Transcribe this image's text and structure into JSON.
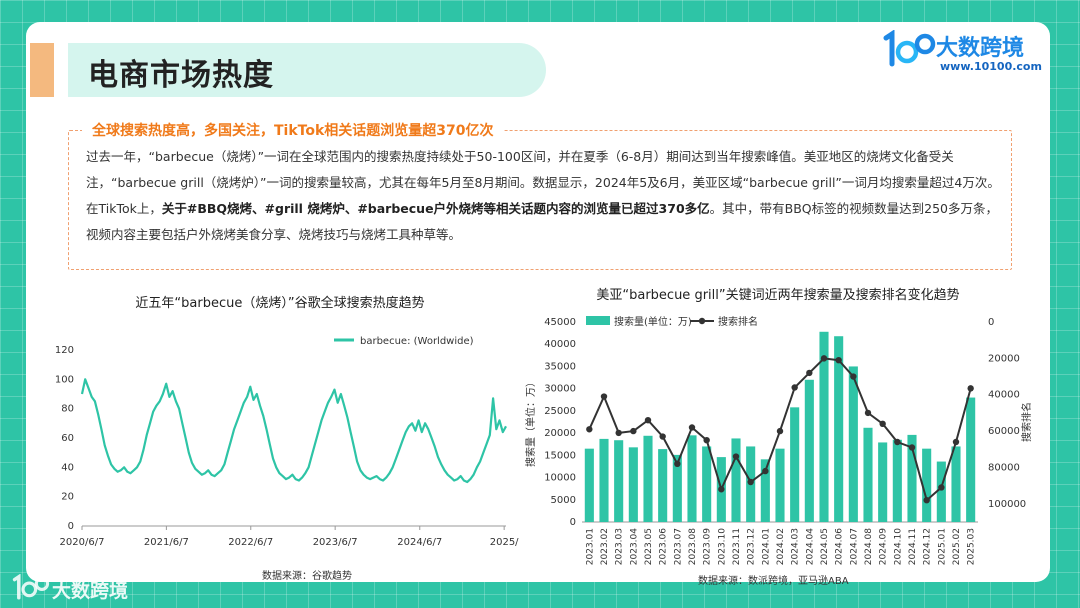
{
  "page": {
    "title": "电商市场热度",
    "logo_text": "大数跨境",
    "logo_url": "www.10100.com",
    "watermark_text": "大数跨境"
  },
  "summary": {
    "heading": "全球搜索热度高，多国关注，TikTok相关话题浏览量超370亿次",
    "p1": "过去一年，“barbecue（烧烤）”一词在全球范围内的搜索热度持续处于50-100区间，并在夏季（6-8月）期间达到当年搜索峰值。美亚地区的烧烤文化备受关注，“barbecue grill（烧烤炉）”一词的搜索量较高，尤其在每年5月至8月期间。数据显示，2024年5及6月，美亚区域“barbecue grill”一词月均搜索量超过4万次。",
    "p2_lead": "在TikTok上，",
    "p2_bold": "关于#BBQ烧烤、#grill 烧烤炉、#barbecue户外烧烤等相关话题内容的浏览量已超过370多亿",
    "p2_tail": "。其中，带有BBQ标签的视频数量达到250多万条，视频内容主要包括户外烧烤美食分享、烧烤技巧与烧烤工具种草等。"
  },
  "chart_data": [
    {
      "type": "line",
      "title": "近五年“barbecue（烧烤）”谷歌全球搜索热度趋势",
      "source": "数据来源：谷歌趋势",
      "legend": "barbecue: (Worldwide)",
      "legend_position": "top-right",
      "color": "#2ec4a6",
      "ylim": [
        0,
        120
      ],
      "yticks": [
        0,
        20,
        40,
        60,
        80,
        100,
        120
      ],
      "xticks": [
        "2020/6/7",
        "2021/6/7",
        "2022/6/7",
        "2023/6/7",
        "2024/6/7",
        "2025/"
      ],
      "x_range": [
        "2020-06-07",
        "2025-06-15"
      ],
      "points": [
        [
          "2020-06-07",
          90
        ],
        [
          "2020-06-21",
          100
        ],
        [
          "2020-07-05",
          94
        ],
        [
          "2020-07-19",
          88
        ],
        [
          "2020-08-02",
          85
        ],
        [
          "2020-08-16",
          76
        ],
        [
          "2020-08-30",
          66
        ],
        [
          "2020-09-13",
          55
        ],
        [
          "2020-09-27",
          48
        ],
        [
          "2020-10-11",
          42
        ],
        [
          "2020-10-25",
          39
        ],
        [
          "2020-11-08",
          37
        ],
        [
          "2020-11-22",
          38
        ],
        [
          "2020-12-06",
          40
        ],
        [
          "2020-12-20",
          37
        ],
        [
          "2021-01-03",
          36
        ],
        [
          "2021-01-17",
          38
        ],
        [
          "2021-01-31",
          40
        ],
        [
          "2021-02-14",
          44
        ],
        [
          "2021-02-28",
          52
        ],
        [
          "2021-03-14",
          62
        ],
        [
          "2021-03-28",
          70
        ],
        [
          "2021-04-11",
          78
        ],
        [
          "2021-04-25",
          82
        ],
        [
          "2021-05-09",
          85
        ],
        [
          "2021-05-23",
          90
        ],
        [
          "2021-06-06",
          97
        ],
        [
          "2021-06-20",
          88
        ],
        [
          "2021-07-04",
          92
        ],
        [
          "2021-07-18",
          85
        ],
        [
          "2021-08-01",
          80
        ],
        [
          "2021-08-15",
          70
        ],
        [
          "2021-08-29",
          60
        ],
        [
          "2021-09-12",
          50
        ],
        [
          "2021-09-26",
          43
        ],
        [
          "2021-10-10",
          39
        ],
        [
          "2021-10-24",
          37
        ],
        [
          "2021-11-07",
          35
        ],
        [
          "2021-11-21",
          36
        ],
        [
          "2021-12-05",
          38
        ],
        [
          "2021-12-19",
          35
        ],
        [
          "2022-01-02",
          34
        ],
        [
          "2022-01-16",
          36
        ],
        [
          "2022-01-30",
          38
        ],
        [
          "2022-02-13",
          42
        ],
        [
          "2022-02-27",
          50
        ],
        [
          "2022-03-13",
          58
        ],
        [
          "2022-03-27",
          66
        ],
        [
          "2022-04-10",
          72
        ],
        [
          "2022-04-24",
          78
        ],
        [
          "2022-05-08",
          84
        ],
        [
          "2022-05-22",
          88
        ],
        [
          "2022-06-05",
          95
        ],
        [
          "2022-06-19",
          86
        ],
        [
          "2022-07-03",
          90
        ],
        [
          "2022-07-17",
          82
        ],
        [
          "2022-07-31",
          75
        ],
        [
          "2022-08-14",
          66
        ],
        [
          "2022-08-28",
          56
        ],
        [
          "2022-09-11",
          46
        ],
        [
          "2022-09-25",
          40
        ],
        [
          "2022-10-09",
          36
        ],
        [
          "2022-10-23",
          34
        ],
        [
          "2022-11-06",
          32
        ],
        [
          "2022-11-20",
          33
        ],
        [
          "2022-12-04",
          35
        ],
        [
          "2022-12-18",
          32
        ],
        [
          "2023-01-01",
          31
        ],
        [
          "2023-01-15",
          33
        ],
        [
          "2023-01-29",
          36
        ],
        [
          "2023-02-12",
          40
        ],
        [
          "2023-02-26",
          48
        ],
        [
          "2023-03-12",
          56
        ],
        [
          "2023-03-26",
          64
        ],
        [
          "2023-04-09",
          72
        ],
        [
          "2023-04-23",
          78
        ],
        [
          "2023-05-07",
          84
        ],
        [
          "2023-05-21",
          88
        ],
        [
          "2023-06-04",
          93
        ],
        [
          "2023-06-18",
          84
        ],
        [
          "2023-07-02",
          90
        ],
        [
          "2023-07-16",
          82
        ],
        [
          "2023-07-30",
          74
        ],
        [
          "2023-08-13",
          64
        ],
        [
          "2023-08-27",
          54
        ],
        [
          "2023-09-10",
          44
        ],
        [
          "2023-09-24",
          38
        ],
        [
          "2023-10-08",
          35
        ],
        [
          "2023-10-22",
          33
        ],
        [
          "2023-11-05",
          32
        ],
        [
          "2023-11-19",
          33
        ],
        [
          "2023-12-03",
          34
        ],
        [
          "2023-12-17",
          32
        ],
        [
          "2023-12-31",
          31
        ],
        [
          "2024-01-14",
          33
        ],
        [
          "2024-01-28",
          36
        ],
        [
          "2024-02-11",
          40
        ],
        [
          "2024-02-25",
          46
        ],
        [
          "2024-03-10",
          52
        ],
        [
          "2024-03-24",
          58
        ],
        [
          "2024-04-07",
          64
        ],
        [
          "2024-04-21",
          68
        ],
        [
          "2024-05-05",
          70
        ],
        [
          "2024-05-19",
          65
        ],
        [
          "2024-06-02",
          72
        ],
        [
          "2024-06-16",
          64
        ],
        [
          "2024-06-30",
          70
        ],
        [
          "2024-07-14",
          66
        ],
        [
          "2024-07-28",
          60
        ],
        [
          "2024-08-11",
          54
        ],
        [
          "2024-08-25",
          47
        ],
        [
          "2024-09-08",
          42
        ],
        [
          "2024-09-22",
          38
        ],
        [
          "2024-10-06",
          35
        ],
        [
          "2024-10-20",
          33
        ],
        [
          "2024-11-03",
          31
        ],
        [
          "2024-11-17",
          32
        ],
        [
          "2024-12-01",
          34
        ],
        [
          "2024-12-15",
          31
        ],
        [
          "2024-12-29",
          30
        ],
        [
          "2025-01-12",
          32
        ],
        [
          "2025-01-26",
          35
        ],
        [
          "2025-02-09",
          40
        ],
        [
          "2025-02-23",
          44
        ],
        [
          "2025-03-09",
          50
        ],
        [
          "2025-03-23",
          56
        ],
        [
          "2025-04-06",
          62
        ],
        [
          "2025-04-20",
          87
        ],
        [
          "2025-05-04",
          66
        ],
        [
          "2025-05-18",
          72
        ],
        [
          "2025-06-01",
          64
        ],
        [
          "2025-06-15",
          68
        ]
      ]
    },
    {
      "type": "bar+line",
      "title": "美亚“barbecue grill”关键词近两年搜索量及搜索排名变化趋势",
      "source": "数据来源：数派跨境，亚马逊ABA",
      "categories": [
        "2023.01",
        "2023.02",
        "2023.03",
        "2023.04",
        "2023.05",
        "2023.06",
        "2023.07",
        "2023.08",
        "2023.09",
        "2023.10",
        "2023.11",
        "2023.12",
        "2024.01",
        "2024.02",
        "2024.03",
        "2024.04",
        "2024.05",
        "2024.06",
        "2024.07",
        "2024.08",
        "2024.09",
        "2024.10",
        "2024.11",
        "2024.12",
        "2025.01",
        "2025.02",
        "2025.03"
      ],
      "series": [
        {
          "name": "搜索量(单位：万)",
          "type": "bar",
          "axis": "left",
          "color": "#2ec4a6",
          "values": [
            16500,
            18700,
            18400,
            16800,
            19400,
            16400,
            15100,
            19500,
            17000,
            14600,
            18800,
            17000,
            14100,
            16500,
            25800,
            32000,
            42800,
            41800,
            35000,
            21200,
            17900,
            18500,
            19600,
            16500,
            13600,
            17000,
            28000
          ]
        },
        {
          "name": "搜索排名",
          "type": "line",
          "axis": "right",
          "color": "#333333",
          "values": [
            59000,
            41000,
            61000,
            60000,
            54000,
            63000,
            78000,
            58000,
            65000,
            92000,
            74000,
            88000,
            82000,
            60000,
            36000,
            28000,
            20000,
            21000,
            30000,
            50000,
            56000,
            66000,
            69000,
            98000,
            91000,
            66000,
            36500
          ]
        }
      ],
      "y_left": {
        "label": "搜索量（单位：万）",
        "ylim": [
          0,
          45000
        ],
        "ticks": [
          0,
          5000,
          10000,
          15000,
          20000,
          25000,
          30000,
          35000,
          40000,
          45000
        ]
      },
      "y_right": {
        "label": "搜索排名",
        "ylim": [
          0,
          110000
        ],
        "inverted": true,
        "ticks": [
          0,
          20000,
          40000,
          60000,
          80000,
          100000
        ]
      },
      "legend_position": "top-left"
    }
  ]
}
